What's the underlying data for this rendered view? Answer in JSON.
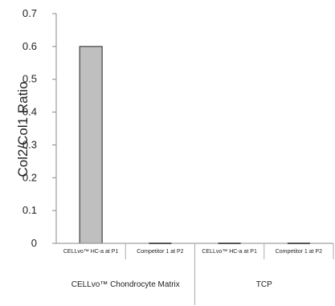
{
  "chart_data": {
    "type": "bar",
    "categories": [
      "CELLvo™ HC-a at P1",
      "Competitor 1 at P2",
      "CELLvo™ HC-a at P1",
      "Competitor 1 at P2"
    ],
    "groups": [
      {
        "label": "CELLvo™ Chondrocyte Matrix",
        "categories": [
          0,
          1
        ]
      },
      {
        "label": "TCP",
        "categories": [
          2,
          3
        ]
      }
    ],
    "values": [
      0.6,
      0.0,
      0.0,
      0.0
    ],
    "bar_color": "#bfbfbf",
    "bar_edge_color": "#222222",
    "xlabel": "",
    "ylabel": "Col2/Col1 Ratio",
    "ylim": [
      0,
      0.7
    ],
    "yticks": [
      0,
      0.1,
      0.2,
      0.3,
      0.4,
      0.5,
      0.6,
      0.7
    ],
    "grid": false
  }
}
